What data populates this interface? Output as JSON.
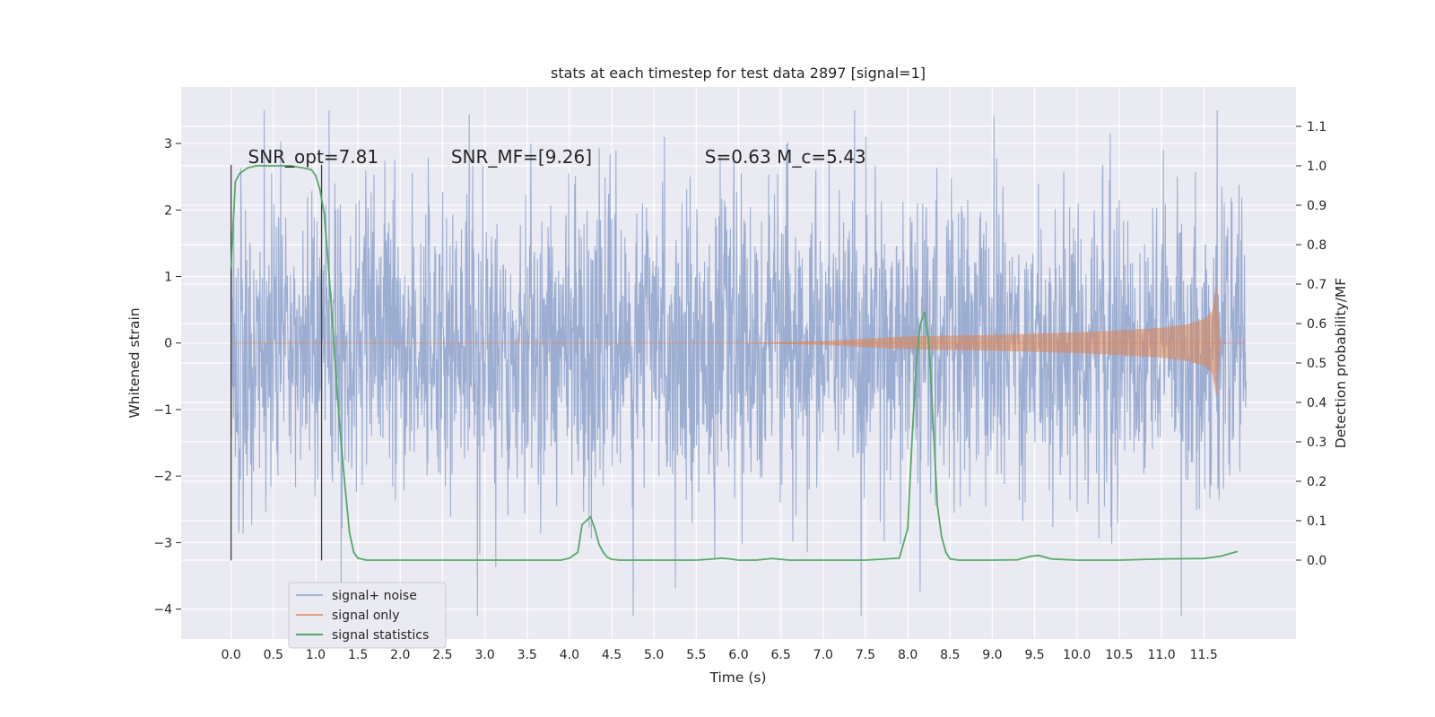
{
  "chart_data": {
    "type": "line",
    "title": "stats at each timestep for test data 2897 [signal=1]",
    "xlabel": "Time (s)",
    "ylabel": "Whitened strain",
    "ylabel_right": "Detection probability/MF",
    "xlim": [
      -0.59,
      12.59
    ],
    "ylim": [
      -4.45,
      3.85
    ],
    "ylim_right": [
      -0.2,
      1.2
    ],
    "x_ticks": [
      0.0,
      0.5,
      1.0,
      1.5,
      2.0,
      2.5,
      3.0,
      3.5,
      4.0,
      4.5,
      5.0,
      5.5,
      6.0,
      6.5,
      7.0,
      7.5,
      8.0,
      8.5,
      9.0,
      9.5,
      10.0,
      10.5,
      11.0,
      11.5
    ],
    "x_tick_labels": [
      "0.0",
      "0.5",
      "1.0",
      "1.5",
      "2.0",
      "2.5",
      "3.0",
      "3.5",
      "4.0",
      "4.5",
      "5.0",
      "5.5",
      "6.0",
      "6.5",
      "7.0",
      "7.5",
      "8.0",
      "8.5",
      "9.0",
      "9.5",
      "10.0",
      "10.5",
      "11.0",
      "11.5"
    ],
    "y_ticks": [
      -4,
      -3,
      -2,
      -1,
      0,
      1,
      2,
      3
    ],
    "y_tick_labels": [
      "−4",
      "−3",
      "−2",
      "−1",
      "0",
      "1",
      "2",
      "3"
    ],
    "y_ticks_right": [
      0.0,
      0.1,
      0.2,
      0.3,
      0.4,
      0.5,
      0.6,
      0.7,
      0.8,
      0.9,
      1.0,
      1.1
    ],
    "y_tick_labels_right": [
      "0.0",
      "0.1",
      "0.2",
      "0.3",
      "0.4",
      "0.5",
      "0.6",
      "0.7",
      "0.8",
      "0.9",
      "1.0",
      "1.1"
    ],
    "grid": true,
    "legend_position": "lower-left",
    "series": [
      {
        "name": "signal+ noise",
        "color": "#8ea2cc",
        "x_range": [
          0.0,
          12.0
        ],
        "typical_amplitude": 1.5,
        "min": -4.1,
        "max": 3.5
      },
      {
        "name": "signal only",
        "color": "#dd8452",
        "x_range": [
          0.0,
          11.7
        ],
        "envelope_x": [
          0.0,
          6.0,
          7.0,
          8.0,
          9.0,
          10.0,
          10.5,
          11.0,
          11.3,
          11.5,
          11.6,
          11.65,
          11.7
        ],
        "envelope_y": [
          0.0,
          0.0,
          0.03,
          0.1,
          0.12,
          0.16,
          0.19,
          0.23,
          0.28,
          0.36,
          0.48,
          0.87,
          0.0
        ]
      },
      {
        "name": "signal statistics",
        "color": "#55a868",
        "axis": "right",
        "x": [
          0.0,
          0.05,
          0.1,
          0.2,
          0.3,
          0.5,
          0.7,
          0.85,
          0.95,
          1.0,
          1.05,
          1.1,
          1.15,
          1.2,
          1.25,
          1.3,
          1.35,
          1.4,
          1.45,
          1.5,
          1.6,
          2.0,
          3.0,
          3.5,
          3.9,
          4.0,
          4.1,
          4.15,
          4.25,
          4.3,
          4.35,
          4.4,
          4.45,
          4.5,
          4.6,
          5.0,
          5.5,
          5.7,
          5.8,
          5.9,
          6.0,
          6.2,
          6.4,
          6.5,
          6.6,
          7.0,
          7.5,
          7.9,
          8.0,
          8.05,
          8.1,
          8.15,
          8.2,
          8.25,
          8.3,
          8.35,
          8.4,
          8.45,
          8.5,
          8.6,
          9.0,
          9.3,
          9.45,
          9.55,
          9.7,
          10.0,
          10.5,
          11.0,
          11.5,
          11.7,
          11.9
        ],
        "y": [
          0.74,
          0.96,
          0.98,
          0.995,
          1.0,
          1.0,
          1.0,
          0.995,
          0.99,
          0.975,
          0.94,
          0.88,
          0.75,
          0.6,
          0.44,
          0.3,
          0.18,
          0.07,
          0.02,
          0.005,
          0.0,
          0.0,
          0.0,
          0.0,
          0.0,
          0.005,
          0.02,
          0.09,
          0.11,
          0.08,
          0.04,
          0.02,
          0.007,
          0.002,
          0.0,
          0.0,
          0.0,
          0.003,
          0.005,
          0.003,
          0.0,
          0.0,
          0.004,
          0.002,
          0.0,
          0.0,
          0.0,
          0.005,
          0.08,
          0.3,
          0.5,
          0.6,
          0.63,
          0.55,
          0.35,
          0.14,
          0.06,
          0.02,
          0.003,
          0.0,
          0.0,
          0.001,
          0.01,
          0.012,
          0.003,
          0.0,
          0.0,
          0.003,
          0.004,
          0.01,
          0.022
        ]
      }
    ],
    "vertical_lines": [
      0.0,
      1.07
    ],
    "annotations": [
      {
        "x": 0.2,
        "y": 2.8,
        "text": "SNR_opt=7.81"
      },
      {
        "x": 2.6,
        "y": 2.8,
        "text": "SNR_MF=[9.26]"
      },
      {
        "x": 5.6,
        "y": 2.8,
        "text": "S=0.63   M_c=5.43"
      }
    ]
  }
}
